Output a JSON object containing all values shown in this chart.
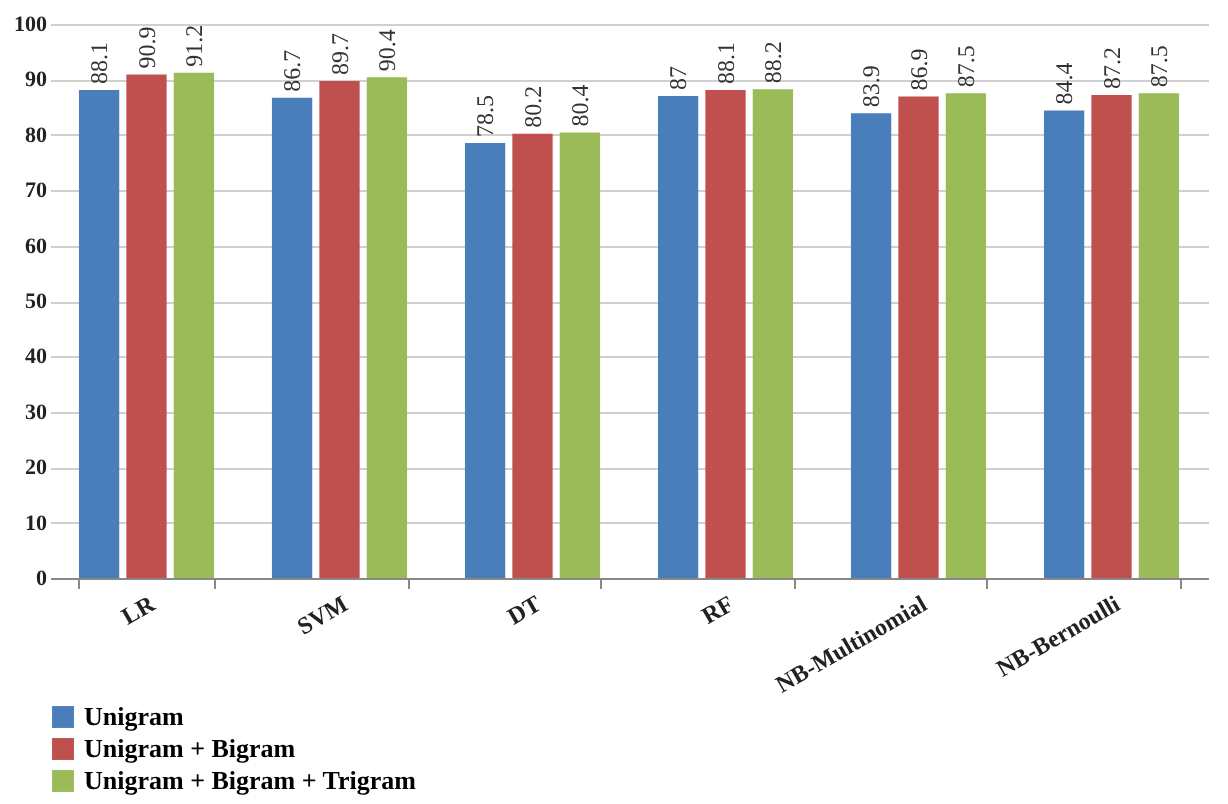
{
  "chart_data": {
    "type": "bar",
    "categories": [
      "LR",
      "SVM",
      "DT",
      "RF",
      "NB-Multinomial",
      "NB-Bernoulli"
    ],
    "series": [
      {
        "name": "Unigram",
        "color": "#4a7ebb",
        "values": [
          88.1,
          86.7,
          78.5,
          87,
          83.9,
          84.4
        ]
      },
      {
        "name": "Unigram + Bigram",
        "color": "#c0504d",
        "values": [
          90.9,
          89.7,
          80.2,
          88.1,
          86.9,
          87.2
        ]
      },
      {
        "name": "Unigram + Bigram + Trigram",
        "color": "#9bbb59",
        "values": [
          91.2,
          90.4,
          80.4,
          88.2,
          87.5,
          87.5
        ]
      }
    ],
    "ylim": [
      0,
      100
    ],
    "yticks": [
      0,
      10,
      20,
      30,
      40,
      50,
      60,
      70,
      80,
      90,
      100
    ],
    "grid": "y",
    "data_labels": true,
    "legend": "bottom left"
  }
}
